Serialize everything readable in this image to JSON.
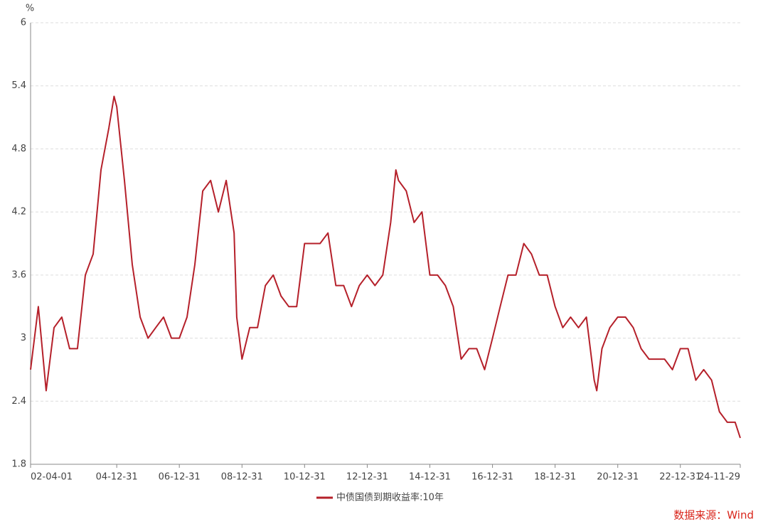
{
  "chart_data": {
    "type": "line",
    "y_unit": "%",
    "source": "数据来源：Wind",
    "x": [
      "02-04-01",
      "02-06-30",
      "02-09-30",
      "02-12-31",
      "03-03-31",
      "03-06-30",
      "03-09-30",
      "03-12-31",
      "04-03-31",
      "04-06-30",
      "04-09-30",
      "04-11-30",
      "04-12-31",
      "05-03-31",
      "05-06-30",
      "05-09-30",
      "05-12-31",
      "06-03-31",
      "06-06-30",
      "06-09-30",
      "06-12-31",
      "07-03-31",
      "07-06-30",
      "07-09-30",
      "07-12-31",
      "08-03-31",
      "08-06-30",
      "08-09-30",
      "08-10-31",
      "08-12-31",
      "09-03-31",
      "09-06-30",
      "09-09-30",
      "09-12-31",
      "10-03-31",
      "10-06-30",
      "10-09-30",
      "10-12-31",
      "11-03-31",
      "11-06-30",
      "11-09-30",
      "11-12-31",
      "12-03-31",
      "12-06-30",
      "12-09-30",
      "12-12-31",
      "13-03-31",
      "13-06-30",
      "13-09-30",
      "13-11-30",
      "13-12-31",
      "14-03-31",
      "14-06-30",
      "14-09-30",
      "14-12-31",
      "15-03-31",
      "15-06-30",
      "15-09-30",
      "15-12-31",
      "16-03-31",
      "16-06-30",
      "16-09-30",
      "16-12-31",
      "17-03-31",
      "17-06-30",
      "17-09-30",
      "17-12-31",
      "18-03-31",
      "18-06-30",
      "18-09-30",
      "18-12-31",
      "19-03-31",
      "19-06-30",
      "19-09-30",
      "19-12-31",
      "20-03-31",
      "20-04-30",
      "20-06-30",
      "20-09-30",
      "20-12-31",
      "21-03-31",
      "21-06-30",
      "21-09-30",
      "21-12-31",
      "22-03-31",
      "22-06-30",
      "22-09-30",
      "22-12-31",
      "23-03-31",
      "23-06-30",
      "23-09-30",
      "23-12-31",
      "24-03-31",
      "24-06-30",
      "24-09-30",
      "24-11-29"
    ],
    "series": [
      {
        "name": "中债国债到期收益率:10年",
        "color": "#b5202a",
        "values": [
          2.7,
          3.3,
          2.5,
          3.1,
          3.2,
          2.9,
          2.9,
          3.6,
          3.8,
          4.6,
          5.0,
          5.3,
          5.2,
          4.5,
          3.7,
          3.2,
          3.0,
          3.1,
          3.2,
          3.0,
          3.0,
          3.2,
          3.7,
          4.4,
          4.5,
          4.2,
          4.5,
          4.0,
          3.2,
          2.8,
          3.1,
          3.1,
          3.5,
          3.6,
          3.4,
          3.3,
          3.3,
          3.9,
          3.9,
          3.9,
          4.0,
          3.5,
          3.5,
          3.3,
          3.5,
          3.6,
          3.5,
          3.6,
          4.1,
          4.6,
          4.5,
          4.4,
          4.1,
          4.2,
          3.6,
          3.6,
          3.5,
          3.3,
          2.8,
          2.9,
          2.9,
          2.7,
          3.0,
          3.3,
          3.6,
          3.6,
          3.9,
          3.8,
          3.6,
          3.6,
          3.3,
          3.1,
          3.2,
          3.1,
          3.2,
          2.6,
          2.5,
          2.9,
          3.1,
          3.2,
          3.2,
          3.1,
          2.9,
          2.8,
          2.8,
          2.8,
          2.7,
          2.9,
          2.9,
          2.6,
          2.7,
          2.6,
          2.3,
          2.2,
          2.2,
          2.05
        ]
      }
    ],
    "xlim": [
      "02-04-01",
      "24-11-29"
    ],
    "xticks": [
      "02-04-01",
      "04-12-31",
      "06-12-31",
      "08-12-31",
      "10-12-31",
      "12-12-31",
      "14-12-31",
      "16-12-31",
      "18-12-31",
      "20-12-31",
      "22-12-31",
      "24-11-29"
    ],
    "ylim": [
      1.8,
      6
    ],
    "yticks": [
      1.8,
      2.4,
      3,
      3.6,
      4.2,
      4.8,
      5.4,
      6
    ],
    "grid": true
  }
}
